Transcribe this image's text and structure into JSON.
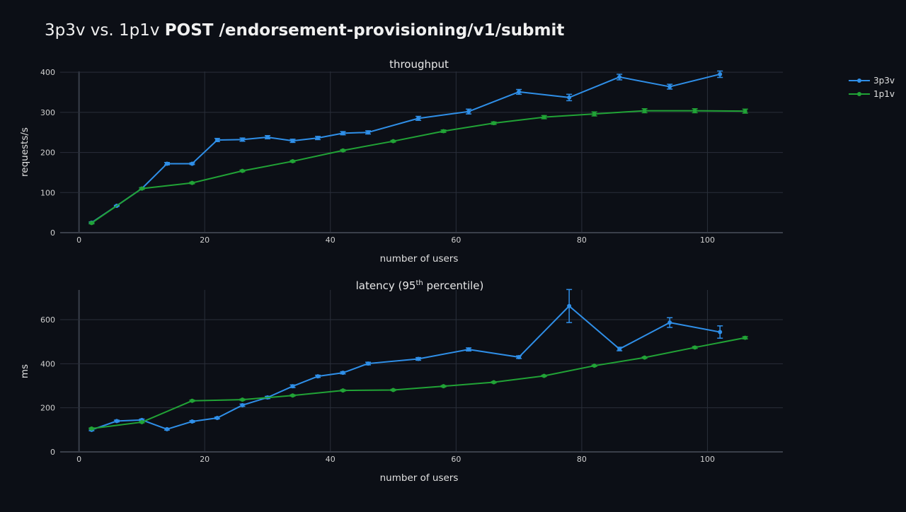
{
  "title": {
    "prefix": "3p3v vs. 1p1v ",
    "bold": "POST /endorsement-provisioning/v1/submit"
  },
  "legend": [
    {
      "name": "3p3v",
      "color": "#2f8fe8"
    },
    {
      "name": "1p1v",
      "color": "#21a336"
    }
  ],
  "chart_data": [
    {
      "type": "line",
      "title": "throughput",
      "xlabel": "number of users",
      "ylabel": "requests/s",
      "xlim": [
        -3,
        112
      ],
      "ylim": [
        0,
        402
      ],
      "xticks": [
        0,
        20,
        40,
        60,
        80,
        100
      ],
      "yticks": [
        0,
        100,
        200,
        300,
        400
      ],
      "grid": true,
      "legend_position": "top-right",
      "series": [
        {
          "name": "3p3v",
          "color": "#2f8fe8",
          "x": [
            2,
            6,
            10,
            14,
            18,
            22,
            26,
            30,
            34,
            38,
            42,
            46,
            54,
            62,
            70,
            78,
            86,
            94,
            102
          ],
          "y": [
            25,
            67,
            110,
            172,
            172,
            231,
            232,
            238,
            229,
            236,
            248,
            250,
            285,
            302,
            351,
            337,
            388,
            364,
            395
          ],
          "err": [
            2,
            1,
            2,
            3,
            2,
            4,
            4,
            4,
            4,
            4,
            4,
            4,
            5,
            6,
            6,
            8,
            7,
            6,
            8
          ]
        },
        {
          "name": "1p1v",
          "color": "#21a336",
          "x": [
            2,
            10,
            18,
            26,
            34,
            42,
            50,
            58,
            66,
            74,
            82,
            90,
            98,
            106
          ],
          "y": [
            24,
            110,
            124,
            154,
            178,
            205,
            228,
            253,
            273,
            288,
            296,
            304,
            304,
            303
          ],
          "err": [
            2,
            2,
            2,
            2,
            2,
            2,
            2,
            3,
            3,
            4,
            5,
            5,
            5,
            5
          ]
        }
      ]
    },
    {
      "type": "line",
      "title_main": "latency (95",
      "title_sup": "th",
      "title_end": " percentile)",
      "xlabel": "number of users",
      "ylabel": "ms",
      "xlim": [
        -3,
        112
      ],
      "ylim": [
        0,
        735
      ],
      "xticks": [
        0,
        20,
        40,
        60,
        80,
        100
      ],
      "yticks": [
        0,
        200,
        400,
        600
      ],
      "grid": true,
      "series": [
        {
          "name": "3p3v",
          "color": "#2f8fe8",
          "x": [
            2,
            6,
            10,
            14,
            18,
            22,
            26,
            30,
            34,
            38,
            42,
            46,
            54,
            62,
            70,
            78,
            86,
            94,
            102
          ],
          "y": [
            100,
            140,
            145,
            103,
            138,
            154,
            212,
            247,
            298,
            343,
            359,
            401,
            422,
            465,
            430,
            662,
            467,
            587,
            544
          ],
          "err": [
            4,
            4,
            4,
            4,
            4,
            4,
            5,
            5,
            6,
            5,
            5,
            6,
            6,
            7,
            6,
            75,
            8,
            22,
            28
          ]
        },
        {
          "name": "1p1v",
          "color": "#21a336",
          "x": [
            2,
            10,
            18,
            26,
            34,
            42,
            50,
            58,
            66,
            74,
            82,
            90,
            98,
            106
          ],
          "y": [
            106,
            135,
            232,
            237,
            256,
            279,
            281,
            298,
            316,
            345,
            391,
            428,
            474,
            518
          ],
          "err": [
            3,
            3,
            3,
            3,
            3,
            3,
            3,
            3,
            3,
            3,
            3,
            3,
            4,
            5
          ]
        }
      ]
    }
  ]
}
